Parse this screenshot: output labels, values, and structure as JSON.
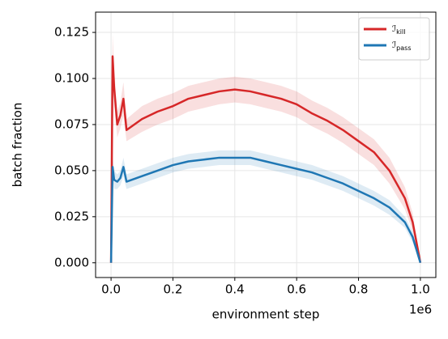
{
  "chart_data": {
    "type": "line",
    "x_label": "environment step",
    "y_label": "batch fraction",
    "x_offset_text": "1e6",
    "x": [
      0,
      0.005,
      0.01,
      0.02,
      0.03,
      0.04,
      0.05,
      0.1,
      0.15,
      0.2,
      0.25,
      0.3,
      0.35,
      0.4,
      0.45,
      0.5,
      0.55,
      0.6,
      0.65,
      0.7,
      0.75,
      0.8,
      0.85,
      0.9,
      0.95,
      0.975,
      1.0
    ],
    "series": [
      {
        "name": "ℐkill",
        "color": "#d62728",
        "values": [
          0,
          0.112,
          0.095,
          0.075,
          0.08,
          0.089,
          0.072,
          0.078,
          0.082,
          0.085,
          0.089,
          0.091,
          0.093,
          0.094,
          0.093,
          0.091,
          0.089,
          0.086,
          0.081,
          0.077,
          0.072,
          0.066,
          0.06,
          0.05,
          0.035,
          0.022,
          0
        ],
        "lower": [
          0,
          0.1,
          0.085,
          0.068,
          0.073,
          0.08,
          0.066,
          0.071,
          0.075,
          0.078,
          0.082,
          0.084,
          0.086,
          0.087,
          0.086,
          0.084,
          0.082,
          0.079,
          0.074,
          0.07,
          0.065,
          0.059,
          0.053,
          0.043,
          0.029,
          0.017,
          0
        ],
        "upper": [
          0,
          0.124,
          0.105,
          0.082,
          0.087,
          0.098,
          0.078,
          0.085,
          0.089,
          0.092,
          0.096,
          0.098,
          0.1,
          0.101,
          0.1,
          0.098,
          0.096,
          0.093,
          0.088,
          0.084,
          0.079,
          0.073,
          0.067,
          0.057,
          0.041,
          0.027,
          0
        ]
      },
      {
        "name": "ℐpass",
        "color": "#1f77b4",
        "values": [
          0,
          0.052,
          0.045,
          0.044,
          0.046,
          0.052,
          0.044,
          0.047,
          0.05,
          0.053,
          0.055,
          0.056,
          0.057,
          0.057,
          0.057,
          0.055,
          0.053,
          0.051,
          0.049,
          0.046,
          0.043,
          0.039,
          0.035,
          0.03,
          0.022,
          0.014,
          0
        ],
        "lower": [
          0,
          0.046,
          0.04,
          0.04,
          0.042,
          0.047,
          0.04,
          0.043,
          0.046,
          0.049,
          0.051,
          0.052,
          0.053,
          0.053,
          0.053,
          0.051,
          0.049,
          0.047,
          0.045,
          0.042,
          0.039,
          0.035,
          0.031,
          0.026,
          0.019,
          0.011,
          0
        ],
        "upper": [
          0,
          0.058,
          0.05,
          0.048,
          0.05,
          0.057,
          0.048,
          0.051,
          0.054,
          0.057,
          0.059,
          0.06,
          0.061,
          0.061,
          0.061,
          0.059,
          0.057,
          0.055,
          0.053,
          0.05,
          0.047,
          0.043,
          0.039,
          0.034,
          0.025,
          0.017,
          0
        ]
      }
    ],
    "xlim": [
      -0.05,
      1.05
    ],
    "ylim": [
      -0.008,
      0.136
    ],
    "xticks": [
      {
        "value": 0,
        "label": "0.0"
      },
      0.2,
      0.4,
      0.6,
      0.8,
      {
        "value": 1,
        "label": "1.0"
      }
    ],
    "yticks": [
      {
        "value": 0,
        "label": "0.000"
      },
      0.025,
      {
        "value": 0.05,
        "label": "0.050"
      },
      0.075,
      {
        "value": 0.1,
        "label": "0.100"
      },
      0.125
    ],
    "grid": true,
    "legend": "upper right"
  }
}
